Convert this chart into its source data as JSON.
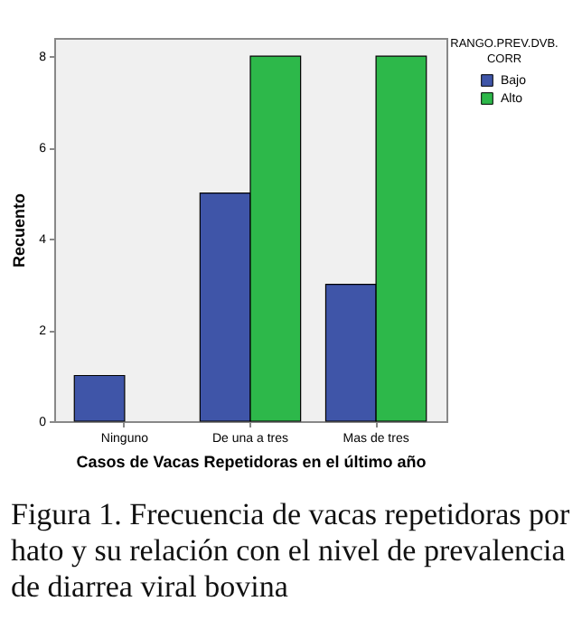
{
  "chart_data": {
    "type": "bar",
    "xlabel": "Casos de Vacas Repetidoras en el último año",
    "ylabel": "Recuento",
    "legend_title": "RANGO.PREV.DVB.CORR",
    "legend": "top right",
    "grid": false,
    "categories": [
      "Ninguno",
      "De una a tres",
      "Mas de tres"
    ],
    "series": [
      {
        "name": "Bajo",
        "color": "#3f55a8",
        "values": [
          1,
          5,
          3
        ]
      },
      {
        "name": "Alto",
        "color": "#2db84a",
        "values": [
          null,
          8,
          8
        ]
      }
    ],
    "ylim": [
      0,
      8.4
    ],
    "yticks": [
      0,
      2,
      4,
      6,
      8
    ],
    "annotations": [
      "Figura 1. Frecuencia de vacas repetidoras por hato y su relación con el nivel de prevalencia de diarrea viral bovina"
    ]
  }
}
